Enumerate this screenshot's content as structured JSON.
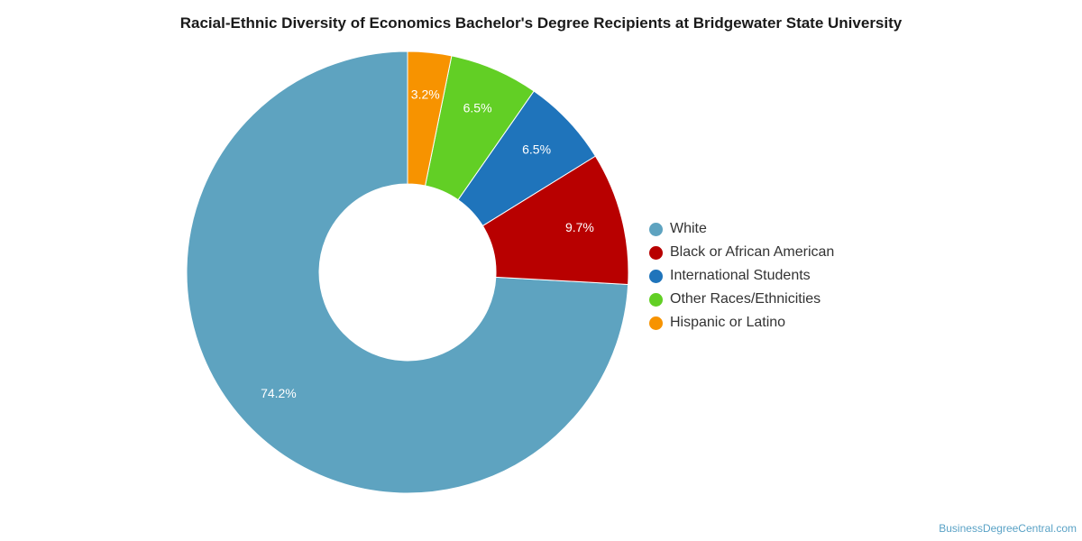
{
  "chart_data": {
    "type": "pie",
    "title": "Racial-Ethnic Diversity of Economics Bachelor's Degree Recipients at Bridgewater State University",
    "categories": [
      "White",
      "Black or African American",
      "International Students",
      "Other Races/Ethnicities",
      "Hispanic or Latino"
    ],
    "values": [
      74.2,
      9.7,
      6.5,
      6.5,
      3.2
    ],
    "labels": [
      "74.2%",
      "9.7%",
      "6.5%",
      "6.5%",
      "3.2%"
    ],
    "colors": [
      "#5ea3c0",
      "#b80000",
      "#1f74bb",
      "#62cf25",
      "#f79300"
    ],
    "donut": true,
    "legend_position": "right"
  },
  "watermark": "BusinessDegreeCentral.com"
}
